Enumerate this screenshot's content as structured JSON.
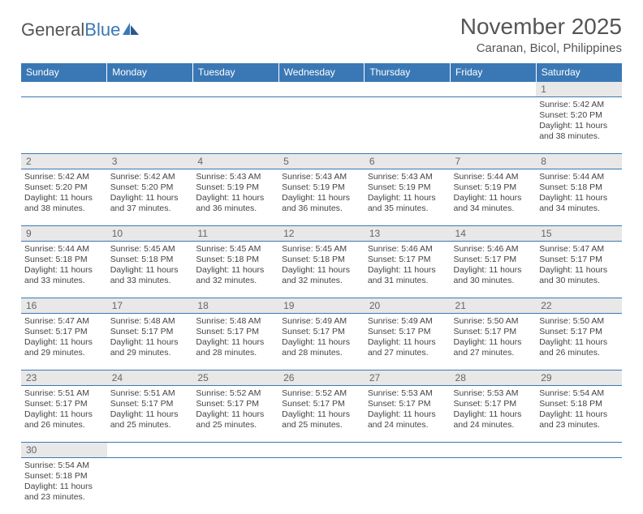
{
  "logo": {
    "part1": "General",
    "part2": "Blue"
  },
  "title": "November 2025",
  "location": "Caranan, Bicol, Philippines",
  "colors": {
    "header_bg": "#3a78b5",
    "header_text": "#ffffff",
    "daynum_bg": "#e8e8e8",
    "daynum_text": "#666666",
    "cell_border": "#3a78b5",
    "body_text": "#444444"
  },
  "weekdays": [
    "Sunday",
    "Monday",
    "Tuesday",
    "Wednesday",
    "Thursday",
    "Friday",
    "Saturday"
  ],
  "weeks": [
    [
      null,
      null,
      null,
      null,
      null,
      null,
      {
        "n": "1",
        "sr": "5:42 AM",
        "ss": "5:20 PM",
        "dl": "11 hours and 38 minutes."
      }
    ],
    [
      {
        "n": "2",
        "sr": "5:42 AM",
        "ss": "5:20 PM",
        "dl": "11 hours and 38 minutes."
      },
      {
        "n": "3",
        "sr": "5:42 AM",
        "ss": "5:20 PM",
        "dl": "11 hours and 37 minutes."
      },
      {
        "n": "4",
        "sr": "5:43 AM",
        "ss": "5:19 PM",
        "dl": "11 hours and 36 minutes."
      },
      {
        "n": "5",
        "sr": "5:43 AM",
        "ss": "5:19 PM",
        "dl": "11 hours and 36 minutes."
      },
      {
        "n": "6",
        "sr": "5:43 AM",
        "ss": "5:19 PM",
        "dl": "11 hours and 35 minutes."
      },
      {
        "n": "7",
        "sr": "5:44 AM",
        "ss": "5:19 PM",
        "dl": "11 hours and 34 minutes."
      },
      {
        "n": "8",
        "sr": "5:44 AM",
        "ss": "5:18 PM",
        "dl": "11 hours and 34 minutes."
      }
    ],
    [
      {
        "n": "9",
        "sr": "5:44 AM",
        "ss": "5:18 PM",
        "dl": "11 hours and 33 minutes."
      },
      {
        "n": "10",
        "sr": "5:45 AM",
        "ss": "5:18 PM",
        "dl": "11 hours and 33 minutes."
      },
      {
        "n": "11",
        "sr": "5:45 AM",
        "ss": "5:18 PM",
        "dl": "11 hours and 32 minutes."
      },
      {
        "n": "12",
        "sr": "5:45 AM",
        "ss": "5:18 PM",
        "dl": "11 hours and 32 minutes."
      },
      {
        "n": "13",
        "sr": "5:46 AM",
        "ss": "5:17 PM",
        "dl": "11 hours and 31 minutes."
      },
      {
        "n": "14",
        "sr": "5:46 AM",
        "ss": "5:17 PM",
        "dl": "11 hours and 30 minutes."
      },
      {
        "n": "15",
        "sr": "5:47 AM",
        "ss": "5:17 PM",
        "dl": "11 hours and 30 minutes."
      }
    ],
    [
      {
        "n": "16",
        "sr": "5:47 AM",
        "ss": "5:17 PM",
        "dl": "11 hours and 29 minutes."
      },
      {
        "n": "17",
        "sr": "5:48 AM",
        "ss": "5:17 PM",
        "dl": "11 hours and 29 minutes."
      },
      {
        "n": "18",
        "sr": "5:48 AM",
        "ss": "5:17 PM",
        "dl": "11 hours and 28 minutes."
      },
      {
        "n": "19",
        "sr": "5:49 AM",
        "ss": "5:17 PM",
        "dl": "11 hours and 28 minutes."
      },
      {
        "n": "20",
        "sr": "5:49 AM",
        "ss": "5:17 PM",
        "dl": "11 hours and 27 minutes."
      },
      {
        "n": "21",
        "sr": "5:50 AM",
        "ss": "5:17 PM",
        "dl": "11 hours and 27 minutes."
      },
      {
        "n": "22",
        "sr": "5:50 AM",
        "ss": "5:17 PM",
        "dl": "11 hours and 26 minutes."
      }
    ],
    [
      {
        "n": "23",
        "sr": "5:51 AM",
        "ss": "5:17 PM",
        "dl": "11 hours and 26 minutes."
      },
      {
        "n": "24",
        "sr": "5:51 AM",
        "ss": "5:17 PM",
        "dl": "11 hours and 25 minutes."
      },
      {
        "n": "25",
        "sr": "5:52 AM",
        "ss": "5:17 PM",
        "dl": "11 hours and 25 minutes."
      },
      {
        "n": "26",
        "sr": "5:52 AM",
        "ss": "5:17 PM",
        "dl": "11 hours and 25 minutes."
      },
      {
        "n": "27",
        "sr": "5:53 AM",
        "ss": "5:17 PM",
        "dl": "11 hours and 24 minutes."
      },
      {
        "n": "28",
        "sr": "5:53 AM",
        "ss": "5:17 PM",
        "dl": "11 hours and 24 minutes."
      },
      {
        "n": "29",
        "sr": "5:54 AM",
        "ss": "5:18 PM",
        "dl": "11 hours and 23 minutes."
      }
    ],
    [
      {
        "n": "30",
        "sr": "5:54 AM",
        "ss": "5:18 PM",
        "dl": "11 hours and 23 minutes."
      },
      null,
      null,
      null,
      null,
      null,
      null
    ]
  ],
  "labels": {
    "sunrise": "Sunrise:",
    "sunset": "Sunset:",
    "daylight": "Daylight:"
  }
}
